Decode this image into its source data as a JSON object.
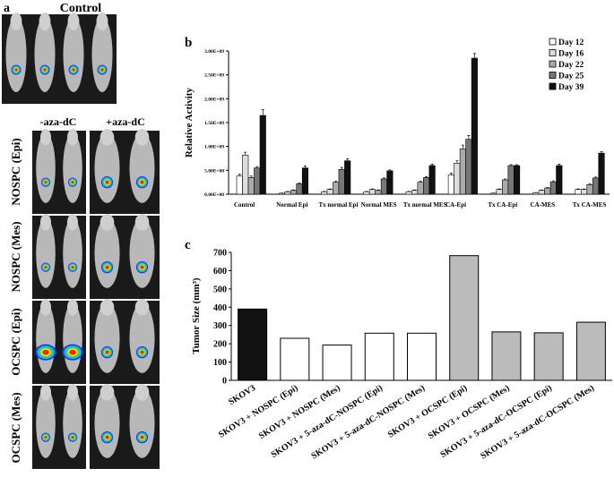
{
  "panel_a": {
    "label": "a",
    "title": "Control",
    "columns": [
      "-aza-dC",
      "+aza-dC"
    ],
    "rows": [
      "NOSPC (Epi)",
      "NOSPC (Mes)",
      "OCSPC (Epi)",
      "OCSPC (Mes)"
    ]
  },
  "chart_data": [
    {
      "type": "grouped-bar",
      "panel_label": "b",
      "y_label": "Relative Activity",
      "categories": [
        "Control",
        "Normal Epi",
        "Tx normal Epi",
        "Normal MES",
        "Tx normal MES",
        "CA-Epi",
        "Tx CA-Epi",
        "CA-MES",
        "Tx CA-MES"
      ],
      "series": [
        {
          "name": "Day 12",
          "color": "#ffffff",
          "values": [
            380000000,
            20000000,
            50000000,
            50000000,
            50000000,
            400000000,
            20000000,
            30000000,
            100000000
          ],
          "errors": [
            40000000,
            5000000,
            10000000,
            10000000,
            10000000,
            40000000,
            5000000,
            5000000,
            10000000
          ]
        },
        {
          "name": "Day 16",
          "color": "#dddddd",
          "values": [
            820000000,
            50000000,
            100000000,
            100000000,
            80000000,
            650000000,
            100000000,
            80000000,
            100000000
          ],
          "errors": [
            60000000,
            10000000,
            10000000,
            10000000,
            10000000,
            50000000,
            10000000,
            10000000,
            10000000
          ]
        },
        {
          "name": "Day 22",
          "color": "#aaaaaa",
          "values": [
            350000000,
            80000000,
            250000000,
            80000000,
            250000000,
            950000000,
            300000000,
            130000000,
            200000000
          ],
          "errors": [
            30000000,
            10000000,
            20000000,
            10000000,
            20000000,
            80000000,
            20000000,
            10000000,
            20000000
          ]
        },
        {
          "name": "Day 25",
          "color": "#777777",
          "values": [
            550000000,
            220000000,
            520000000,
            320000000,
            350000000,
            1150000000,
            600000000,
            260000000,
            340000000
          ],
          "errors": [
            30000000,
            20000000,
            40000000,
            20000000,
            20000000,
            80000000,
            20000000,
            20000000,
            20000000
          ]
        },
        {
          "name": "Day 39",
          "color": "#111111",
          "values": [
            1650000000,
            550000000,
            700000000,
            490000000,
            600000000,
            2850000000,
            600000000,
            600000000,
            860000000
          ],
          "errors": [
            120000000,
            40000000,
            40000000,
            20000000,
            30000000,
            100000000,
            20000000,
            30000000,
            30000000
          ]
        }
      ],
      "ylim": [
        0,
        3000000000
      ],
      "yticks": [
        {
          "value": 0,
          "label": "0.00E+00"
        },
        {
          "value": 500000000,
          "label": "5.00E+08"
        },
        {
          "value": 1000000000,
          "label": "1.00E+09"
        },
        {
          "value": 1500000000,
          "label": "1.50E+09"
        },
        {
          "value": 2000000000,
          "label": "2.00E+09"
        },
        {
          "value": 2500000000,
          "label": "2.50E+09"
        },
        {
          "value": 3000000000,
          "label": "3.00E+09"
        }
      ],
      "legend": "top-right"
    },
    {
      "type": "bar",
      "panel_label": "c",
      "y_label": "Tumor Size (mm³)",
      "categories": [
        "SKOV3",
        "SKOV3 + NOSPC (Epi)",
        "SKOV3 + NOSPC (Mes)",
        "SKOV3 + 5-aza-dC-NOSPC (Epi)",
        "SKOV3 + 5-aza-dC-NOSPC (Mes)",
        "SKOV3 + OCSPC (Epi)",
        "SKOV3 + OCSPC (Mes)",
        "SKOV3 + 5-aza-dC-OCSPC (Epi)",
        "SKOV3 + 5-aza-dC-OCSPC (Mes)"
      ],
      "values": [
        390,
        230,
        193,
        258,
        258,
        682,
        265,
        260,
        318
      ],
      "colors": [
        "#111111",
        "#ffffff",
        "#ffffff",
        "#ffffff",
        "#ffffff",
        "#bbbbbb",
        "#bbbbbb",
        "#bbbbbb",
        "#bbbbbb"
      ],
      "ylim": [
        0,
        700
      ],
      "yticks": [
        0,
        100,
        200,
        300,
        400,
        500,
        600,
        700
      ]
    }
  ]
}
